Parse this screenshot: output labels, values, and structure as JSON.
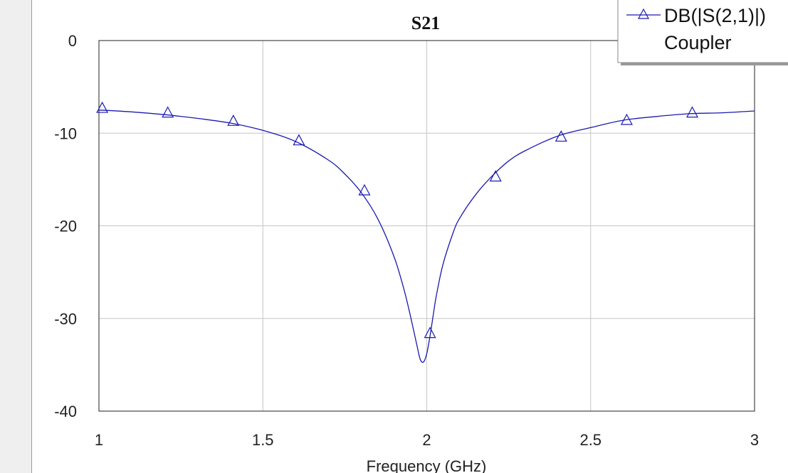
{
  "chart_data": {
    "type": "line",
    "title": "S21",
    "xlabel": "Frequency (GHz)",
    "ylabel": "",
    "xlim": [
      1,
      3
    ],
    "ylim": [
      -40,
      0
    ],
    "xticks": [
      1,
      1.5,
      2,
      2.5,
      3
    ],
    "yticks": [
      0,
      -10,
      -20,
      -30,
      -40
    ],
    "xtick_labels": [
      "1",
      "1.5",
      "2",
      "2.5",
      "3"
    ],
    "ytick_labels": [
      "0",
      "-10",
      "-20",
      "-30",
      "-40"
    ],
    "grid": true,
    "legend_position": "top-right",
    "series": [
      {
        "name": "DB(|S(2,1)|)",
        "name_line2": "Coupler",
        "color": "#1a1ab0",
        "marker": "triangle",
        "x": [
          1.0,
          1.1,
          1.2,
          1.3,
          1.4,
          1.5,
          1.6,
          1.7,
          1.75,
          1.8,
          1.85,
          1.9,
          1.93,
          1.95,
          1.97,
          1.98,
          1.99,
          2.0,
          2.01,
          2.02,
          2.03,
          2.05,
          2.08,
          2.1,
          2.15,
          2.2,
          2.25,
          2.3,
          2.4,
          2.5,
          2.6,
          2.7,
          2.8,
          2.9,
          3.0
        ],
        "y": [
          -7.5,
          -7.7,
          -8.0,
          -8.4,
          -8.9,
          -9.7,
          -10.9,
          -12.9,
          -14.4,
          -16.4,
          -19.2,
          -23.3,
          -26.8,
          -29.7,
          -32.9,
          -34.4,
          -34.7,
          -33.8,
          -31.9,
          -29.6,
          -27.4,
          -24.1,
          -20.8,
          -19.2,
          -16.6,
          -14.6,
          -13.0,
          -11.9,
          -10.3,
          -9.4,
          -8.6,
          -8.2,
          -7.9,
          -7.8,
          -7.6
        ],
        "marker_x": [
          1.01,
          1.21,
          1.41,
          1.61,
          1.81,
          2.01,
          2.21,
          2.41,
          2.61,
          2.81
        ],
        "marker_y": [
          -7.3,
          -7.8,
          -8.7,
          -10.8,
          -16.2,
          -31.6,
          -14.7,
          -10.4,
          -8.6,
          -7.8
        ]
      }
    ]
  }
}
